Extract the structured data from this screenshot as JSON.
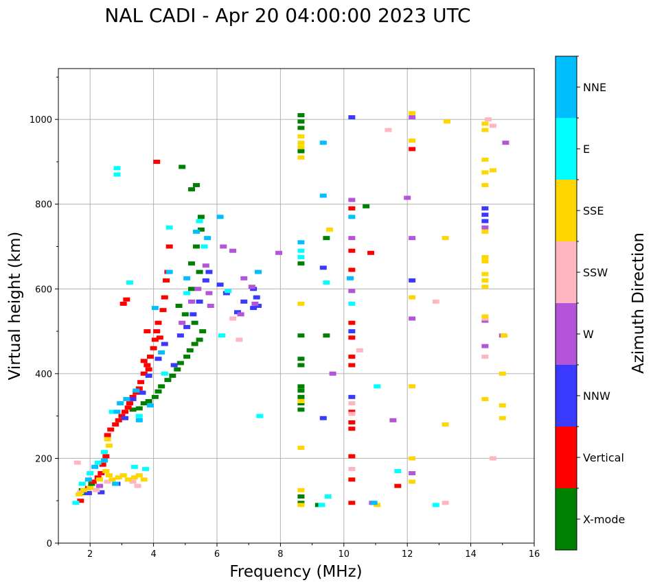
{
  "chart_data": {
    "type": "scatter",
    "title": "NAL CADI - Apr 20 04:00:00 2023 UTC",
    "xlabel": "Frequency (MHz)",
    "ylabel": "Virtual height (km)",
    "xlim": [
      1,
      16
    ],
    "ylim": [
      0,
      1120
    ],
    "xticks": [
      2,
      4,
      6,
      8,
      10,
      12,
      14,
      16
    ],
    "yticks": [
      0,
      200,
      400,
      600,
      800,
      1000
    ],
    "grid": true,
    "colorbar": {
      "label": "Azimuth Direction",
      "position": "right",
      "categories": [
        {
          "name": "X-mode",
          "color": "#008000"
        },
        {
          "name": "Vertical",
          "color": "#ff0000"
        },
        {
          "name": "NNW",
          "color": "#3a3aff"
        },
        {
          "name": "W",
          "color": "#b454d8"
        },
        {
          "name": "SSW",
          "color": "#ffb6c1"
        },
        {
          "name": "SSE",
          "color": "#ffd700"
        },
        {
          "name": "E",
          "color": "#00ffff"
        },
        {
          "name": "NNE",
          "color": "#00bfff"
        }
      ]
    },
    "series": [
      {
        "name": "X-mode",
        "points": [
          [
            1.75,
            125
          ],
          [
            1.85,
            118
          ],
          [
            2.05,
            140
          ],
          [
            3.35,
            315
          ],
          [
            3.55,
            318
          ],
          [
            3.7,
            330
          ],
          [
            3.85,
            335
          ],
          [
            4.05,
            345
          ],
          [
            4.15,
            358
          ],
          [
            4.25,
            370
          ],
          [
            4.45,
            385
          ],
          [
            4.6,
            395
          ],
          [
            4.75,
            410
          ],
          [
            4.85,
            425
          ],
          [
            5.05,
            440
          ],
          [
            5.15,
            455
          ],
          [
            5.3,
            470
          ],
          [
            5.45,
            480
          ],
          [
            5.55,
            500
          ],
          [
            5.3,
            520
          ],
          [
            5.0,
            540
          ],
          [
            4.8,
            560
          ],
          [
            5.2,
            600
          ],
          [
            5.45,
            640
          ],
          [
            5.2,
            660
          ],
          [
            5.35,
            700
          ],
          [
            5.5,
            740
          ],
          [
            5.5,
            770
          ],
          [
            5.35,
            845
          ],
          [
            5.2,
            835
          ],
          [
            4.9,
            888
          ],
          [
            8.65,
            95
          ],
          [
            8.65,
            110
          ],
          [
            8.65,
            315
          ],
          [
            8.65,
            330
          ],
          [
            8.65,
            345
          ],
          [
            8.65,
            360
          ],
          [
            8.65,
            370
          ],
          [
            8.65,
            420
          ],
          [
            8.65,
            435
          ],
          [
            8.65,
            490
          ],
          [
            8.65,
            660
          ],
          [
            8.65,
            925
          ],
          [
            8.65,
            980
          ],
          [
            8.65,
            995
          ],
          [
            8.65,
            1010
          ],
          [
            9.2,
            90
          ],
          [
            9.45,
            490
          ],
          [
            9.45,
            720
          ],
          [
            10.7,
            795
          ]
        ]
      },
      {
        "name": "Vertical",
        "points": [
          [
            1.7,
            100
          ],
          [
            1.95,
            130
          ],
          [
            2.1,
            145
          ],
          [
            2.25,
            155
          ],
          [
            2.35,
            165
          ],
          [
            2.4,
            185
          ],
          [
            2.5,
            205
          ],
          [
            2.55,
            255
          ],
          [
            2.65,
            268
          ],
          [
            2.8,
            280
          ],
          [
            2.9,
            290
          ],
          [
            3.0,
            300
          ],
          [
            3.1,
            310
          ],
          [
            3.2,
            320
          ],
          [
            3.25,
            330
          ],
          [
            3.35,
            345
          ],
          [
            3.45,
            355
          ],
          [
            3.55,
            365
          ],
          [
            3.6,
            380
          ],
          [
            3.7,
            400
          ],
          [
            3.8,
            420
          ],
          [
            3.9,
            440
          ],
          [
            4.0,
            460
          ],
          [
            4.05,
            480
          ],
          [
            4.1,
            500
          ],
          [
            4.15,
            520
          ],
          [
            3.85,
            410
          ],
          [
            3.7,
            430
          ],
          [
            3.8,
            500
          ],
          [
            4.2,
            485
          ],
          [
            4.3,
            550
          ],
          [
            4.35,
            580
          ],
          [
            4.4,
            620
          ],
          [
            4.45,
            640
          ],
          [
            4.5,
            700
          ],
          [
            4.1,
            900
          ],
          [
            3.15,
            575
          ],
          [
            3.05,
            565
          ],
          [
            10.25,
            95
          ],
          [
            10.25,
            150
          ],
          [
            10.25,
            205
          ],
          [
            10.25,
            270
          ],
          [
            10.25,
            285
          ],
          [
            10.25,
            310
          ],
          [
            10.25,
            420
          ],
          [
            10.25,
            440
          ],
          [
            10.25,
            485
          ],
          [
            10.25,
            520
          ],
          [
            10.25,
            645
          ],
          [
            10.25,
            690
          ],
          [
            10.25,
            790
          ],
          [
            10.85,
            685
          ],
          [
            11.7,
            135
          ],
          [
            12.15,
            930
          ]
        ]
      },
      {
        "name": "NNW",
        "points": [
          [
            1.95,
            118
          ],
          [
            2.35,
            120
          ],
          [
            2.85,
            140
          ],
          [
            3.1,
            295
          ],
          [
            3.35,
            340
          ],
          [
            3.65,
            355
          ],
          [
            3.85,
            395
          ],
          [
            4.15,
            435
          ],
          [
            4.35,
            470
          ],
          [
            4.65,
            420
          ],
          [
            4.85,
            490
          ],
          [
            5.05,
            510
          ],
          [
            5.25,
            540
          ],
          [
            5.45,
            570
          ],
          [
            5.65,
            620
          ],
          [
            5.75,
            640
          ],
          [
            6.1,
            610
          ],
          [
            6.3,
            590
          ],
          [
            6.65,
            545
          ],
          [
            6.85,
            570
          ],
          [
            7.15,
            555
          ],
          [
            7.25,
            580
          ],
          [
            7.15,
            600
          ],
          [
            7.3,
            560
          ],
          [
            9.35,
            295
          ],
          [
            9.35,
            650
          ],
          [
            10.25,
            345
          ],
          [
            10.25,
            500
          ],
          [
            10.25,
            1005
          ],
          [
            12.15,
            620
          ],
          [
            14.45,
            760
          ],
          [
            14.45,
            775
          ],
          [
            14.45,
            790
          ]
        ]
      },
      {
        "name": "W",
        "points": [
          [
            2.3,
            135
          ],
          [
            4.9,
            520
          ],
          [
            5.2,
            570
          ],
          [
            5.4,
            600
          ],
          [
            5.65,
            655
          ],
          [
            5.75,
            590
          ],
          [
            5.8,
            560
          ],
          [
            6.2,
            700
          ],
          [
            6.5,
            690
          ],
          [
            6.75,
            540
          ],
          [
            6.85,
            625
          ],
          [
            7.1,
            605
          ],
          [
            7.2,
            565
          ],
          [
            7.95,
            685
          ],
          [
            9.65,
            400
          ],
          [
            10.25,
            810
          ],
          [
            10.25,
            720
          ],
          [
            10.25,
            595
          ],
          [
            10.9,
            95
          ],
          [
            11.55,
            290
          ],
          [
            12.0,
            815
          ],
          [
            12.15,
            720
          ],
          [
            12.15,
            530
          ],
          [
            12.15,
            165
          ],
          [
            12.15,
            1005
          ],
          [
            14.45,
            525
          ],
          [
            14.45,
            745
          ],
          [
            14.45,
            465
          ],
          [
            15.0,
            490
          ],
          [
            15.1,
            945
          ]
        ]
      },
      {
        "name": "SSW",
        "points": [
          [
            1.6,
            190
          ],
          [
            1.7,
            120
          ],
          [
            2.2,
            125
          ],
          [
            2.55,
            145
          ],
          [
            3.35,
            145
          ],
          [
            3.5,
            135
          ],
          [
            6.7,
            480
          ],
          [
            6.5,
            530
          ],
          [
            10.25,
            330
          ],
          [
            10.25,
            305
          ],
          [
            10.25,
            175
          ],
          [
            10.5,
            455
          ],
          [
            11.4,
            975
          ],
          [
            12.9,
            570
          ],
          [
            13.2,
            95
          ],
          [
            14.45,
            440
          ],
          [
            14.45,
            530
          ],
          [
            14.55,
            1000
          ],
          [
            14.7,
            985
          ],
          [
            14.7,
            200
          ]
        ]
      },
      {
        "name": "SSE",
        "points": [
          [
            1.65,
            115
          ],
          [
            1.8,
            125
          ],
          [
            2.0,
            130
          ],
          [
            2.3,
            150
          ],
          [
            2.5,
            170
          ],
          [
            2.6,
            160
          ],
          [
            2.7,
            150
          ],
          [
            2.9,
            155
          ],
          [
            3.05,
            160
          ],
          [
            3.2,
            150
          ],
          [
            3.4,
            155
          ],
          [
            3.55,
            160
          ],
          [
            3.7,
            150
          ],
          [
            2.6,
            230
          ],
          [
            2.55,
            245
          ],
          [
            8.65,
            90
          ],
          [
            8.65,
            125
          ],
          [
            8.65,
            225
          ],
          [
            8.65,
            335
          ],
          [
            8.65,
            565
          ],
          [
            8.65,
            910
          ],
          [
            8.65,
            935
          ],
          [
            8.65,
            945
          ],
          [
            8.65,
            960
          ],
          [
            9.55,
            740
          ],
          [
            11.05,
            90
          ],
          [
            12.15,
            145
          ],
          [
            12.15,
            200
          ],
          [
            12.15,
            370
          ],
          [
            12.15,
            580
          ],
          [
            12.15,
            950
          ],
          [
            12.15,
            1015
          ],
          [
            13.2,
            280
          ],
          [
            13.2,
            720
          ],
          [
            13.25,
            995
          ],
          [
            14.45,
            340
          ],
          [
            14.45,
            535
          ],
          [
            14.45,
            605
          ],
          [
            14.45,
            620
          ],
          [
            14.45,
            635
          ],
          [
            14.45,
            665
          ],
          [
            14.45,
            675
          ],
          [
            14.45,
            735
          ],
          [
            14.45,
            845
          ],
          [
            14.45,
            875
          ],
          [
            14.45,
            905
          ],
          [
            14.45,
            975
          ],
          [
            14.45,
            990
          ],
          [
            14.7,
            880
          ],
          [
            15.0,
            295
          ],
          [
            15.0,
            325
          ],
          [
            15.0,
            400
          ],
          [
            15.05,
            490
          ]
        ]
      },
      {
        "name": "E",
        "points": [
          [
            1.55,
            95
          ],
          [
            1.75,
            140
          ],
          [
            2.0,
            165
          ],
          [
            2.25,
            190
          ],
          [
            2.45,
            215
          ],
          [
            2.7,
            310
          ],
          [
            2.85,
            870
          ],
          [
            2.85,
            885
          ],
          [
            3.25,
            615
          ],
          [
            3.4,
            180
          ],
          [
            3.55,
            300
          ],
          [
            3.75,
            175
          ],
          [
            4.35,
            400
          ],
          [
            4.5,
            745
          ],
          [
            5.05,
            590
          ],
          [
            5.45,
            760
          ],
          [
            5.6,
            700
          ],
          [
            6.15,
            490
          ],
          [
            6.35,
            595
          ],
          [
            7.35,
            300
          ],
          [
            8.65,
            675
          ],
          [
            8.65,
            690
          ],
          [
            9.3,
            90
          ],
          [
            9.5,
            110
          ],
          [
            9.45,
            615
          ],
          [
            10.25,
            565
          ],
          [
            11.05,
            370
          ],
          [
            11.7,
            170
          ],
          [
            12.9,
            90
          ]
        ]
      },
      {
        "name": "NNE",
        "points": [
          [
            1.95,
            150
          ],
          [
            2.15,
            180
          ],
          [
            2.45,
            195
          ],
          [
            2.8,
            140
          ],
          [
            2.85,
            310
          ],
          [
            2.95,
            330
          ],
          [
            3.15,
            340
          ],
          [
            3.45,
            360
          ],
          [
            3.55,
            290
          ],
          [
            3.9,
            325
          ],
          [
            4.05,
            555
          ],
          [
            4.25,
            450
          ],
          [
            4.5,
            640
          ],
          [
            5.05,
            625
          ],
          [
            5.35,
            735
          ],
          [
            5.7,
            720
          ],
          [
            6.1,
            770
          ],
          [
            7.3,
            640
          ],
          [
            8.65,
            710
          ],
          [
            9.35,
            820
          ],
          [
            9.35,
            945
          ],
          [
            10.2,
            625
          ],
          [
            10.25,
            770
          ],
          [
            10.95,
            95
          ]
        ]
      }
    ]
  }
}
